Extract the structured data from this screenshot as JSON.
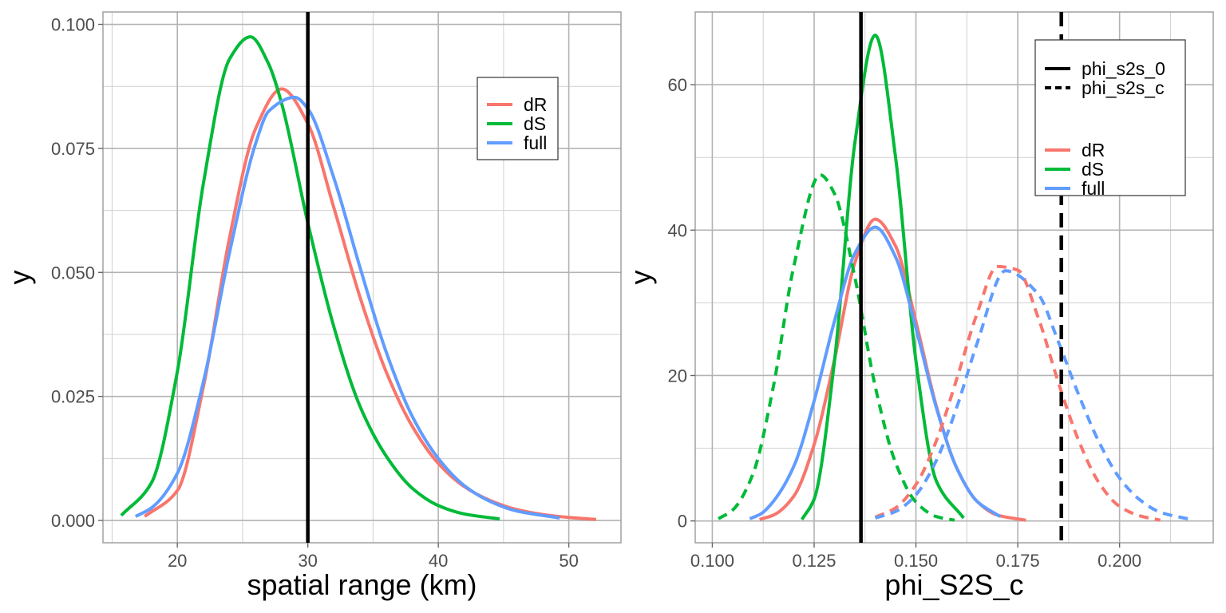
{
  "chart_data": [
    {
      "type": "line",
      "xlabel": "spatial range (km)",
      "ylabel": "y",
      "xlim": [
        14.3,
        54.0
      ],
      "ylim": [
        -0.0045,
        0.1025
      ],
      "x_ticks": [
        20,
        30,
        40,
        50
      ],
      "y_ticks": [
        0.0,
        0.025,
        0.05,
        0.075,
        0.1
      ],
      "x_tick_labels": [
        "20",
        "30",
        "40",
        "50"
      ],
      "y_tick_labels": [
        "0.000",
        "0.025",
        "0.050",
        "0.075",
        "0.100"
      ],
      "grid": true,
      "legend_placement": "top-right",
      "legend_entries": [
        "dR",
        "dS",
        "full"
      ],
      "vlines": [
        {
          "x": 30,
          "linetype": "solid",
          "color": "#000000"
        }
      ],
      "series": [
        {
          "name": "dR",
          "color": "#F8766D",
          "linetype": "solid",
          "x": [
            17.5,
            20,
            22,
            24,
            26,
            28,
            30,
            32,
            34,
            36,
            38,
            40,
            42,
            44,
            46,
            48,
            50,
            52.1
          ],
          "y": [
            0.0008,
            0.006,
            0.027,
            0.057,
            0.079,
            0.087,
            0.08,
            0.063,
            0.045,
            0.03,
            0.019,
            0.0115,
            0.0068,
            0.004,
            0.0022,
            0.0012,
            0.0006,
            0.0002
          ]
        },
        {
          "name": "dS",
          "color": "#00BA38",
          "linetype": "solid",
          "x": [
            15.7,
            18,
            20,
            22,
            24,
            25.6,
            27,
            28,
            30,
            32,
            34,
            36,
            38,
            40,
            42,
            44.7
          ],
          "y": [
            0.001,
            0.0075,
            0.03,
            0.068,
            0.093,
            0.0975,
            0.092,
            0.084,
            0.06,
            0.039,
            0.023,
            0.013,
            0.0065,
            0.003,
            0.0013,
            0.0003
          ]
        },
        {
          "name": "full",
          "color": "#619CFF",
          "linetype": "solid",
          "x": [
            16.8,
            18,
            20,
            22,
            24,
            26,
            27,
            29,
            30,
            32,
            34,
            36,
            38,
            40,
            42,
            44,
            46,
            49.3
          ],
          "y": [
            0.0008,
            0.0025,
            0.0095,
            0.028,
            0.054,
            0.076,
            0.0825,
            0.0853,
            0.083,
            0.069,
            0.051,
            0.034,
            0.021,
            0.0125,
            0.007,
            0.0038,
            0.0019,
            0.0005
          ]
        }
      ]
    },
    {
      "type": "line",
      "xlabel": "phi_S2S_c",
      "ylabel": "y",
      "xlim": [
        0.0958,
        0.223
      ],
      "ylim": [
        -3.0,
        70.0
      ],
      "x_ticks": [
        0.1,
        0.125,
        0.15,
        0.175,
        0.2
      ],
      "y_ticks": [
        0,
        20,
        40,
        60
      ],
      "x_tick_labels": [
        "0.100",
        "0.125",
        "0.150",
        "0.175",
        "0.200"
      ],
      "y_tick_labels": [
        "0",
        "20",
        "40",
        "60"
      ],
      "grid": true,
      "legend_placement": "top-right",
      "legend_linetype_entries": [
        "phi_s2s_0",
        "phi_s2s_c"
      ],
      "legend_entries": [
        "dR",
        "dS",
        "full"
      ],
      "vlines": [
        {
          "x": 0.1365,
          "linetype": "solid",
          "color": "#000000"
        },
        {
          "x": 0.1857,
          "linetype": "dashed",
          "color": "#000000"
        }
      ],
      "series": [
        {
          "name": "dR",
          "color": "#F8766D",
          "linetype": "solid",
          "x": [
            0.1116,
            0.115,
            0.12,
            0.125,
            0.13,
            0.135,
            0.14,
            0.145,
            0.15,
            0.155,
            0.16,
            0.165,
            0.17,
            0.177
          ],
          "y": [
            0.2,
            0.8,
            3.4,
            10.5,
            22.2,
            35.5,
            41.5,
            37.8,
            27.4,
            15.8,
            7.3,
            2.7,
            0.8,
            0.1
          ]
        },
        {
          "name": "dS",
          "color": "#00BA38",
          "linetype": "solid",
          "x": [
            0.122,
            0.125,
            0.13,
            0.135,
            0.14,
            0.145,
            0.15,
            0.155,
            0.1617
          ],
          "y": [
            0.2,
            3.0,
            22.0,
            52.0,
            66.8,
            50.0,
            22.0,
            5.5,
            0.4
          ]
        },
        {
          "name": "full",
          "color": "#619CFF",
          "linetype": "solid",
          "x": [
            0.1092,
            0.112,
            0.115,
            0.12,
            0.125,
            0.13,
            0.135,
            0.14,
            0.145,
            0.15,
            0.155,
            0.16,
            0.165,
            0.1707
          ],
          "y": [
            0.3,
            1.0,
            2.7,
            7.5,
            16.5,
            27.5,
            36.8,
            40.4,
            36.3,
            26.5,
            15.6,
            7.3,
            2.7,
            0.6
          ]
        },
        {
          "name": "dR",
          "color": "#F8766D",
          "linetype": "dashed",
          "x": [
            0.14,
            0.145,
            0.15,
            0.155,
            0.16,
            0.165,
            0.17,
            0.175,
            0.18,
            0.185,
            0.19,
            0.195,
            0.2,
            0.205,
            0.21
          ],
          "y": [
            0.5,
            1.8,
            5.0,
            11.0,
            19.5,
            28.5,
            35.0,
            34.5,
            28.0,
            19.0,
            11.0,
            5.2,
            2.0,
            0.7,
            0.1
          ]
        },
        {
          "name": "dS",
          "color": "#00BA38",
          "linetype": "dashed",
          "x": [
            0.1015,
            0.105,
            0.11,
            0.115,
            0.12,
            0.1265,
            0.13,
            0.135,
            0.14,
            0.145,
            0.15,
            0.155,
            0.1595
          ],
          "y": [
            0.3,
            1.5,
            6.5,
            18.5,
            35.0,
            47.6,
            45.0,
            33.5,
            18.5,
            8.0,
            2.6,
            0.6,
            0.1
          ]
        },
        {
          "name": "full",
          "color": "#619CFF",
          "linetype": "dashed",
          "x": [
            0.14,
            0.145,
            0.15,
            0.155,
            0.16,
            0.165,
            0.172,
            0.18,
            0.185,
            0.19,
            0.195,
            0.2,
            0.205,
            0.21,
            0.2175
          ],
          "y": [
            0.4,
            1.3,
            3.6,
            8.3,
            15.6,
            24.4,
            34.4,
            31.2,
            24.6,
            17.3,
            10.8,
            5.9,
            2.9,
            1.2,
            0.2
          ]
        }
      ]
    }
  ]
}
